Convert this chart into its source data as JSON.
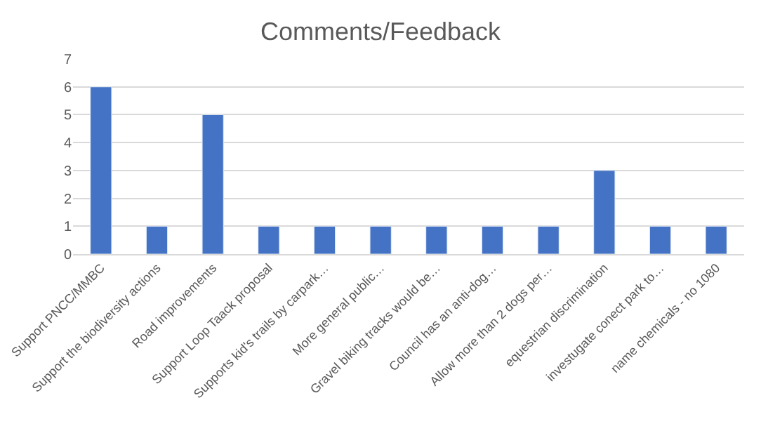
{
  "chart_data": {
    "type": "bar",
    "title": "Comments/Feedback",
    "categories": [
      "Support PNCC/MMBC",
      "Support the biodiversity actions",
      "Road improvements",
      "Support Loop Taack proposal",
      "Supports kid's trails by carpark…",
      "More general public…",
      "Gravel biking tracks would be…",
      "Council has an anti-dog…",
      "Allow more than 2 dogs per…",
      "equestrian discrimination",
      "investugate conect park to…",
      "name chemicals - no 1080"
    ],
    "values": [
      6,
      1,
      5,
      1,
      1,
      1,
      1,
      1,
      1,
      3,
      1,
      1
    ],
    "color": "#4472c4",
    "ylim": [
      0,
      7
    ],
    "yticks": [
      0,
      1,
      2,
      3,
      4,
      5,
      6,
      7
    ],
    "grid": "y",
    "legend": false
  }
}
